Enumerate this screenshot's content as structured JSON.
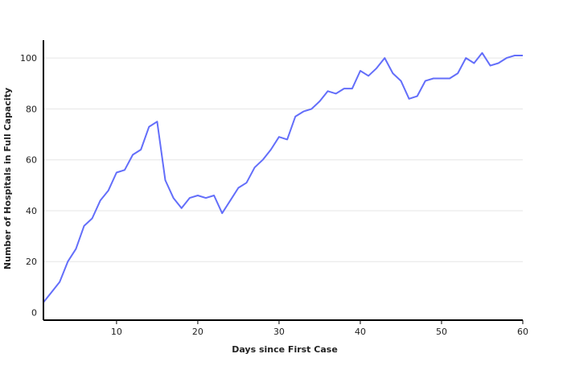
{
  "chart_data": {
    "type": "line",
    "title": "",
    "xlabel": "Days since First Case",
    "ylabel": "Number of Hospitals in Full Capacity",
    "xlim": [
      1,
      60
    ],
    "ylim": [
      -3,
      107
    ],
    "xticks": [
      10,
      20,
      30,
      40,
      50,
      60
    ],
    "yticks": [
      0,
      20,
      40,
      60,
      80,
      100
    ],
    "grid": "horizontal",
    "line_color": "#636efa",
    "series": [
      {
        "x": [
          1,
          2,
          3,
          4,
          5,
          6,
          7,
          8,
          9,
          10,
          11,
          12,
          13,
          14,
          15,
          16,
          17,
          18,
          19,
          20,
          21,
          22,
          23,
          24,
          25,
          26,
          27,
          28,
          29,
          30,
          31,
          32,
          33,
          34,
          35,
          36,
          37,
          38,
          39,
          40,
          41,
          42,
          43,
          44,
          45,
          46,
          47,
          48,
          49,
          50,
          51,
          52,
          53,
          54,
          55,
          56,
          57,
          58,
          59,
          60
        ],
        "values": [
          4,
          8,
          12,
          20,
          25,
          34,
          37,
          44,
          48,
          55,
          56,
          62,
          64,
          73,
          75,
          52,
          45,
          41,
          45,
          46,
          45,
          46,
          39,
          44,
          49,
          51,
          57,
          60,
          64,
          69,
          68,
          77,
          79,
          80,
          83,
          87,
          86,
          88,
          88,
          95,
          93,
          96,
          100,
          94,
          91,
          84,
          85,
          91,
          92,
          92,
          92,
          94,
          100,
          98,
          102,
          97,
          98,
          100,
          101,
          101
        ]
      }
    ]
  }
}
